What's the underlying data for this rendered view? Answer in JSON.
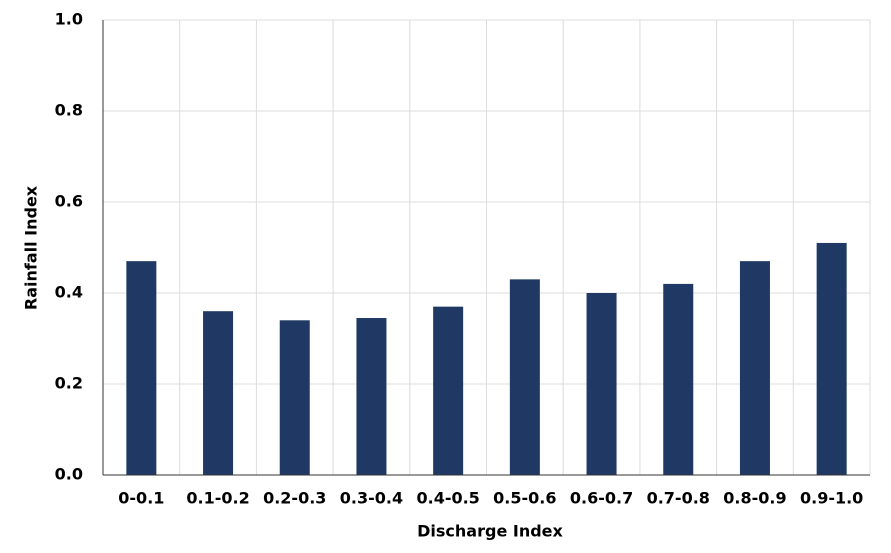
{
  "chart_data": {
    "type": "bar",
    "x_label": "Discharge Index",
    "y_label": "Rainfall Index",
    "categories": [
      "0-0.1",
      "0.1-0.2",
      "0.2-0.3",
      "0.3-0.4",
      "0.4-0.5",
      "0.5-0.6",
      "0.6-0.7",
      "0.7-0.8",
      "0.8-0.9",
      "0.9-1.0"
    ],
    "values": [
      0.47,
      0.36,
      0.34,
      0.345,
      0.37,
      0.43,
      0.4,
      0.42,
      0.47,
      0.51
    ],
    "color": "#1f3864",
    "ylim": [
      0,
      1
    ],
    "yticks": [
      {
        "value": 0,
        "label": "0.0"
      },
      0.2,
      0.4,
      0.6,
      0.8,
      {
        "value": 1,
        "label": "1.0"
      }
    ],
    "grid": true
  }
}
